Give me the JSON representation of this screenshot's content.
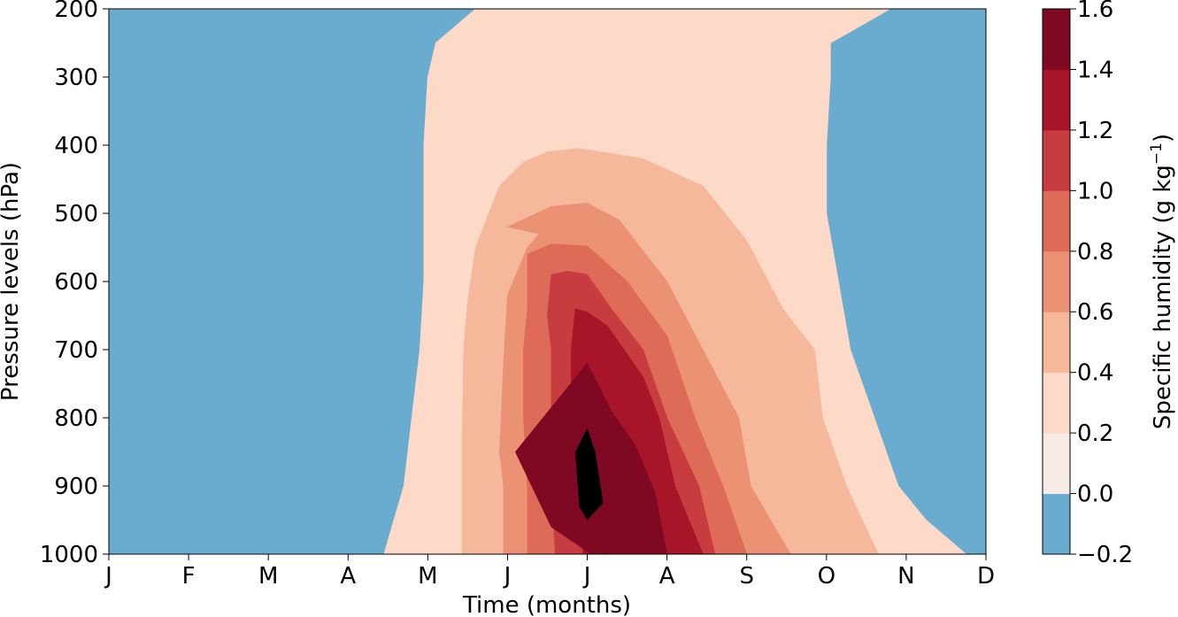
{
  "chart_data": {
    "type": "filled-contour",
    "title": "",
    "xlabel": "Time (months)",
    "ylabel": "Pressure levels (hPa)",
    "colorbar_label": "Specific humidity (g kg",
    "colorbar_label_exponent": "−1",
    "colorbar_label_close": ")",
    "x_ticks": [
      "J",
      "F",
      "M",
      "A",
      "M",
      "J",
      "J",
      "A",
      "S",
      "O",
      "N",
      "D"
    ],
    "y_ticks": [
      "200",
      "300",
      "400",
      "500",
      "600",
      "700",
      "800",
      "900",
      "1000"
    ],
    "y_tick_values": [
      200,
      300,
      400,
      500,
      600,
      700,
      800,
      900,
      1000
    ],
    "ylim": [
      1000,
      200
    ],
    "y_inverted": true,
    "levels": [
      -0.2,
      0.0,
      0.2,
      0.4,
      0.6,
      0.8,
      1.0,
      1.2,
      1.4,
      1.6
    ],
    "level_labels": [
      "−0.2",
      "0.0",
      "0.2",
      "0.4",
      "0.6",
      "0.8",
      "1.0",
      "1.2",
      "1.4",
      "1.6"
    ],
    "colors": [
      "#6aacd0",
      "#f7ebe6",
      "#fdd9c7",
      "#f6b89b",
      "#eb9274",
      "#dd6b57",
      "#c73d3f",
      "#a81529",
      "#7f0922"
    ],
    "contours_month_index": [
      {
        "min_level": 0.0,
        "points": [
          [
            4.6,
            200
          ],
          [
            4.1,
            250
          ],
          [
            4.0,
            300
          ],
          [
            3.95,
            400
          ],
          [
            3.95,
            600
          ],
          [
            3.9,
            700
          ],
          [
            3.8,
            800
          ],
          [
            3.7,
            900
          ],
          [
            3.45,
            1000
          ],
          [
            10.75,
            1000
          ],
          [
            10.25,
            950
          ],
          [
            9.9,
            900
          ],
          [
            9.6,
            800
          ],
          [
            9.3,
            700
          ],
          [
            9.15,
            600
          ],
          [
            9.0,
            500
          ],
          [
            9.0,
            400
          ],
          [
            9.05,
            300
          ],
          [
            9.05,
            250
          ],
          [
            9.8,
            200
          ]
        ]
      },
      {
        "min_level": 0.2,
        "points": [
          [
            5.5,
            410
          ],
          [
            5.9,
            405
          ],
          [
            6.7,
            420
          ],
          [
            7.45,
            460
          ],
          [
            8.0,
            540
          ],
          [
            8.45,
            640
          ],
          [
            8.85,
            700
          ],
          [
            8.95,
            800
          ],
          [
            9.25,
            900
          ],
          [
            9.65,
            1000
          ],
          [
            4.43,
            1000
          ],
          [
            4.43,
            850
          ],
          [
            4.45,
            700
          ],
          [
            4.5,
            630
          ],
          [
            4.6,
            550
          ],
          [
            4.9,
            460
          ],
          [
            5.2,
            425
          ]
        ]
      },
      {
        "min_level": 0.4,
        "points": [
          [
            5.0,
            520
          ],
          [
            5.55,
            490
          ],
          [
            6.0,
            485
          ],
          [
            6.4,
            510
          ],
          [
            7.0,
            600
          ],
          [
            7.45,
            700
          ],
          [
            7.9,
            800
          ],
          [
            8.05,
            900
          ],
          [
            8.55,
            1000
          ],
          [
            4.95,
            1000
          ],
          [
            4.95,
            900
          ],
          [
            4.9,
            850
          ],
          [
            4.95,
            720
          ],
          [
            5.0,
            620
          ],
          [
            5.25,
            550
          ],
          [
            5.4,
            530
          ]
        ]
      },
      {
        "min_level": 0.6,
        "points": [
          [
            5.25,
            560
          ],
          [
            5.55,
            545
          ],
          [
            6.0,
            548
          ],
          [
            6.5,
            600
          ],
          [
            7.0,
            680
          ],
          [
            7.35,
            800
          ],
          [
            7.7,
            900
          ],
          [
            8.0,
            1000
          ],
          [
            5.25,
            1000
          ],
          [
            5.25,
            900
          ],
          [
            5.2,
            800
          ],
          [
            5.2,
            700
          ],
          [
            5.25,
            640
          ]
        ]
      },
      {
        "min_level": 0.8,
        "points": [
          [
            5.55,
            590
          ],
          [
            5.75,
            585
          ],
          [
            6.0,
            590
          ],
          [
            6.3,
            640
          ],
          [
            6.7,
            700
          ],
          [
            7.0,
            800
          ],
          [
            7.4,
            900
          ],
          [
            7.6,
            1000
          ],
          [
            5.6,
            1000
          ],
          [
            5.55,
            900
          ],
          [
            5.55,
            800
          ],
          [
            5.55,
            700
          ],
          [
            5.5,
            650
          ]
        ]
      },
      {
        "min_level": 1.0,
        "points": [
          [
            5.85,
            640
          ],
          [
            6.0,
            645
          ],
          [
            6.25,
            665
          ],
          [
            6.7,
            740
          ],
          [
            6.9,
            800
          ],
          [
            7.1,
            900
          ],
          [
            7.45,
            1000
          ],
          [
            5.95,
            1000
          ],
          [
            5.85,
            900
          ],
          [
            5.8,
            800
          ],
          [
            5.8,
            700
          ]
        ]
      },
      {
        "min_level": 1.2,
        "points": [
          [
            6.0,
            720
          ],
          [
            6.3,
            790
          ],
          [
            6.6,
            840
          ],
          [
            6.85,
            910
          ],
          [
            7.0,
            1000
          ],
          [
            6.05,
            1000
          ],
          [
            5.55,
            960
          ],
          [
            5.1,
            850
          ]
        ]
      },
      {
        "min_level": 1.4,
        "points": [
          [
            6.0,
            815
          ],
          [
            6.1,
            850
          ],
          [
            6.2,
            925
          ],
          [
            6.0,
            950
          ],
          [
            5.9,
            930
          ],
          [
            5.85,
            850
          ]
        ]
      }
    ]
  }
}
